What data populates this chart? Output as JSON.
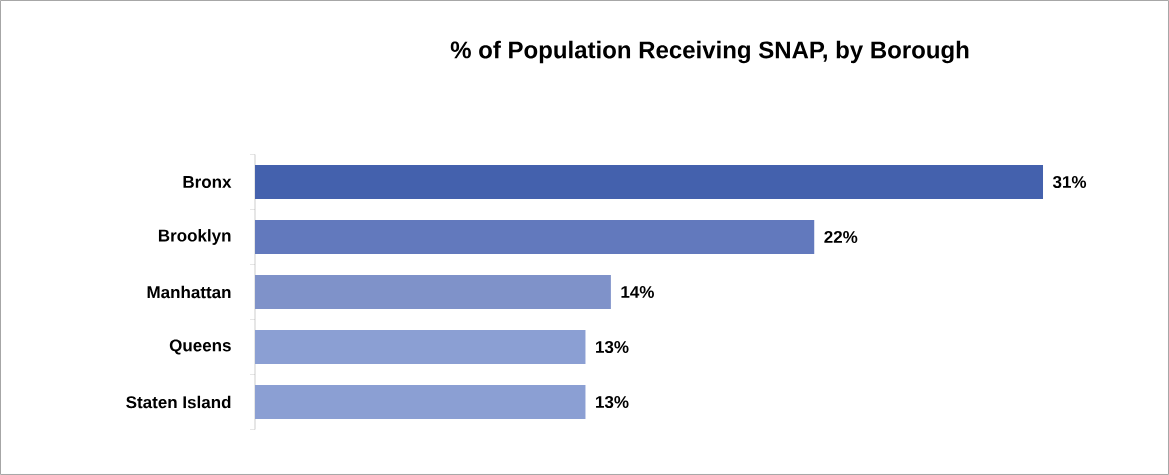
{
  "chart_data": {
    "type": "bar",
    "orientation": "horizontal",
    "title": "% of Population Receiving SNAP, by Borough",
    "categories": [
      "Bronx",
      "Brooklyn",
      "Manhattan",
      "Queens",
      "Staten Island"
    ],
    "values": [
      31,
      22,
      14,
      13,
      13
    ],
    "value_labels": [
      "31%",
      "22%",
      "14%",
      "13%",
      "13%"
    ],
    "colors": [
      "#4461ad",
      "#6279bd",
      "#7f92c9",
      "#8b9fd3",
      "#8b9fd3"
    ]
  }
}
